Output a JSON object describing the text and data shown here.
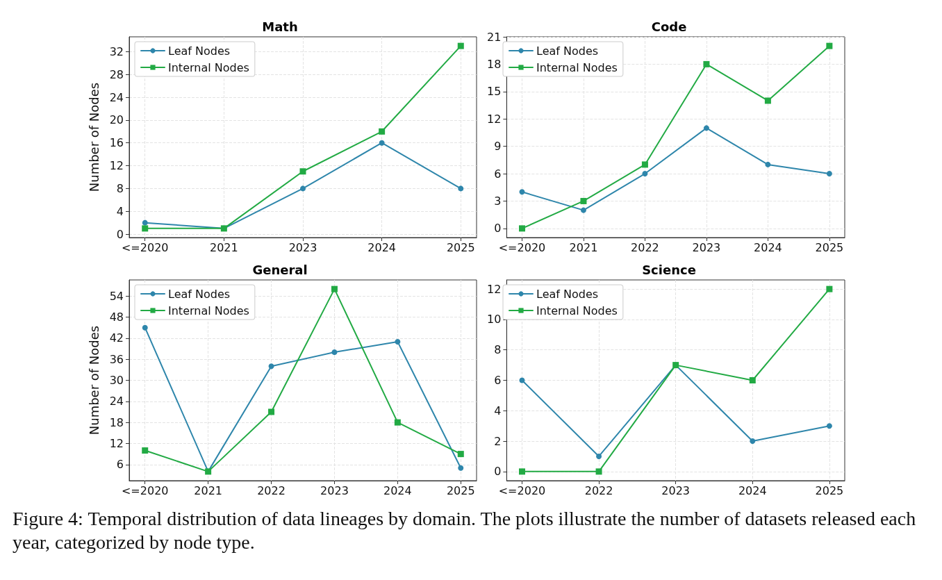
{
  "chart_data": [
    {
      "type": "line",
      "title": "Math",
      "ylabel": "Number of Nodes",
      "categories": [
        "<=2020",
        "2021",
        "2023",
        "2024",
        "2025"
      ],
      "series": [
        {
          "name": "Leaf Nodes",
          "color": "#2e86ab",
          "marker": "circle",
          "values": [
            2,
            1,
            8,
            16,
            8
          ]
        },
        {
          "name": "Internal Nodes",
          "color": "#22aa44",
          "marker": "square",
          "values": [
            1,
            1,
            11,
            18,
            33
          ]
        }
      ],
      "ylim": [
        -0.6,
        34.6
      ],
      "yticks": [
        0,
        4,
        8,
        12,
        16,
        20,
        24,
        28,
        32
      ],
      "grid": true,
      "legend": "top left",
      "line_style": "solid"
    },
    {
      "type": "line",
      "title": "Code",
      "categories": [
        "<=2020",
        "2021",
        "2022",
        "2023",
        "2024",
        "2025"
      ],
      "series": [
        {
          "name": "Leaf Nodes",
          "color": "#2e86ab",
          "marker": "circle",
          "values": [
            4,
            2,
            6,
            11,
            7,
            6
          ]
        },
        {
          "name": "Internal Nodes",
          "color": "#22aa44",
          "marker": "square",
          "values": [
            0,
            3,
            7,
            18,
            14,
            20
          ]
        }
      ],
      "ylim": [
        -1,
        21
      ],
      "yticks": [
        0,
        3,
        6,
        9,
        12,
        15,
        18,
        21
      ],
      "grid": true,
      "legend": "top left",
      "line_style": "solid"
    },
    {
      "type": "line",
      "title": "General",
      "ylabel": "Number of Nodes",
      "categories": [
        "<=2020",
        "2021",
        "2022",
        "2023",
        "2024",
        "2025"
      ],
      "series": [
        {
          "name": "Leaf Nodes",
          "color": "#2e86ab",
          "marker": "circle",
          "values": [
            45,
            4,
            34,
            38,
            41,
            5
          ]
        },
        {
          "name": "Internal Nodes",
          "color": "#22aa44",
          "marker": "square",
          "values": [
            10,
            4,
            21,
            56,
            18,
            9
          ]
        }
      ],
      "ylim": [
        1.4,
        58.6
      ],
      "yticks": [
        6,
        12,
        18,
        24,
        30,
        36,
        42,
        48,
        54
      ],
      "grid": true,
      "legend": "top left",
      "line_style": "solid"
    },
    {
      "type": "line",
      "title": "Science",
      "categories": [
        "<=2020",
        "2022",
        "2023",
        "2024",
        "2025"
      ],
      "series": [
        {
          "name": "Leaf Nodes",
          "color": "#2e86ab",
          "marker": "circle",
          "values": [
            6,
            1,
            7,
            2,
            3
          ]
        },
        {
          "name": "Internal Nodes",
          "color": "#22aa44",
          "marker": "square",
          "values": [
            0,
            0,
            7,
            6,
            12
          ]
        }
      ],
      "ylim": [
        -0.6,
        12.6
      ],
      "yticks": [
        0,
        2,
        4,
        6,
        8,
        10,
        12
      ],
      "grid": true,
      "legend": "top left",
      "line_style": "solid",
      "annotations": [
        "Figure 4: Temporal distribution of data lineages by domain. The plots illustrate the number of datasets released each year, categorized by node type."
      ]
    }
  ]
}
